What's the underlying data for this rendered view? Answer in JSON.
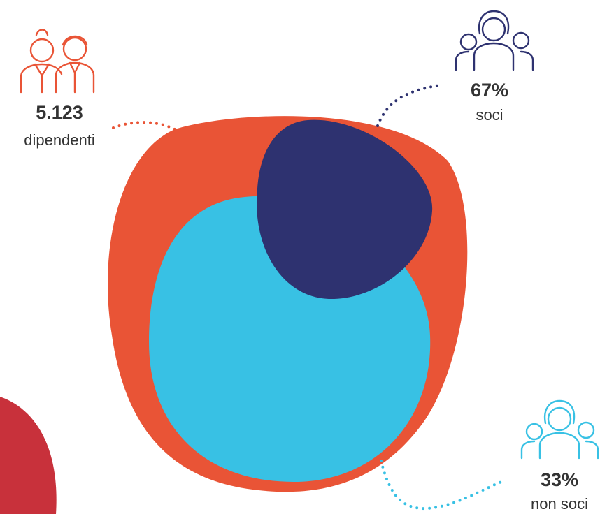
{
  "items": [
    {
      "value": "5.123",
      "label": "dipendenti"
    },
    {
      "value": "67%",
      "label": "soci"
    },
    {
      "value": "33%",
      "label": "non soci"
    }
  ]
}
